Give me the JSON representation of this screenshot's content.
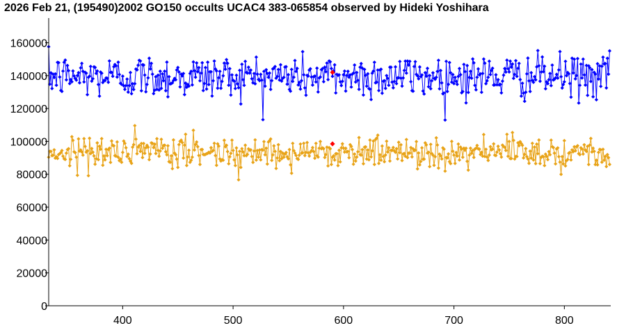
{
  "chart_data": {
    "type": "line",
    "title": "2026 Feb 21, (195490)2002 GO150 occults UCAC4 383-065854 observed by Hideki Yoshihara",
    "xlabel": "",
    "ylabel": "",
    "xlim": [
      333,
      842
    ],
    "ylim": [
      0,
      175000
    ],
    "x_ticks": [
      400,
      500,
      600,
      700,
      800
    ],
    "y_ticks": [
      0,
      20000,
      40000,
      60000,
      80000,
      100000,
      120000,
      140000,
      160000
    ],
    "grid": false,
    "legend": "none",
    "x": {
      "start": 333,
      "end": 841,
      "step": 1
    },
    "series": [
      {
        "color": "#0000ff",
        "mean": 139500,
        "spread": 10500,
        "min": 113000,
        "max": 169000
      },
      {
        "color": "#e8a317",
        "mean": 93500,
        "spread": 7500,
        "min": 69000,
        "max": 118000
      }
    ],
    "highlights": [
      {
        "x": 590,
        "y": 142000,
        "color": "#ff0000"
      },
      {
        "x": 590,
        "y": 98500,
        "color": "#ff0000"
      }
    ]
  }
}
